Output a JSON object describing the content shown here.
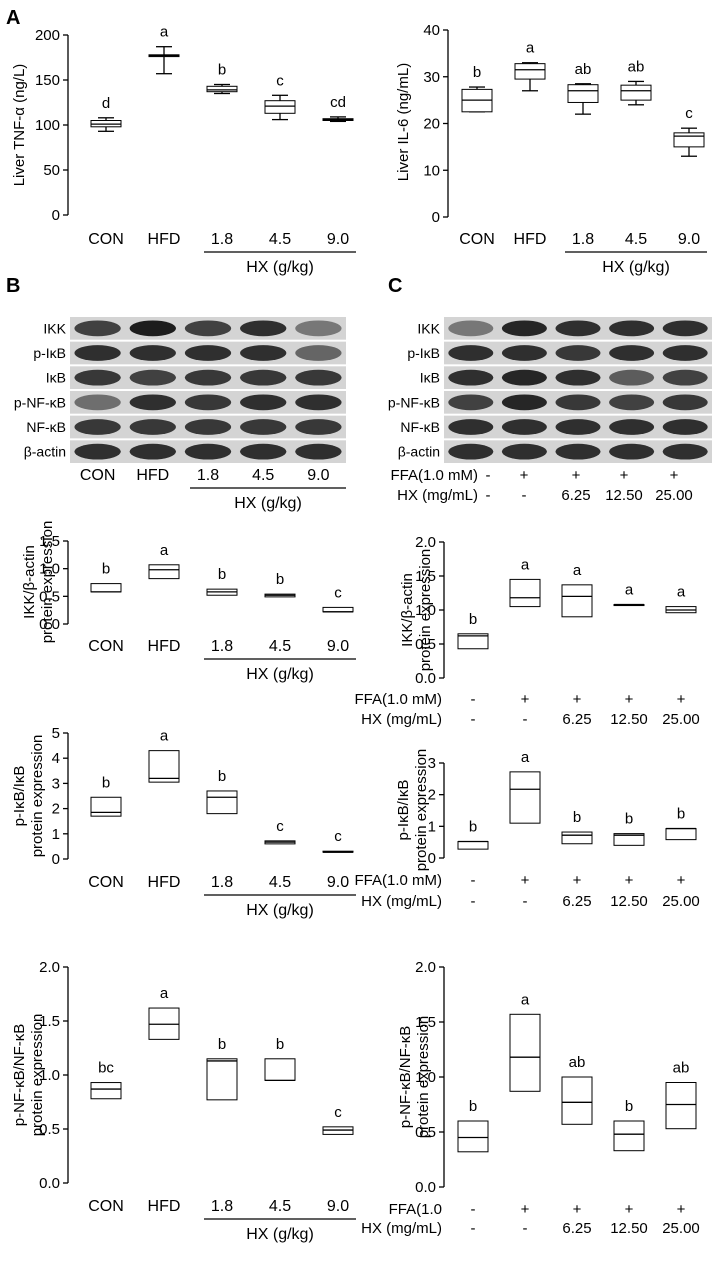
{
  "panel_labels": [
    "A",
    "B",
    "C"
  ],
  "chart_data": [
    {
      "id": "a1",
      "type": "boxplot",
      "ylabel": "Liver TNF-α (ng/L)",
      "ylim": [
        0,
        200
      ],
      "yticks": [
        0,
        50,
        100,
        150,
        200
      ],
      "categories": [
        "CON",
        "HFD",
        "1.8",
        "4.5",
        "9.0"
      ],
      "group_label": "HX (g/kg)",
      "letters": [
        "d",
        "a",
        "b",
        "c",
        "cd"
      ],
      "boxes": [
        {
          "min": 93,
          "q1": 98,
          "median": 101,
          "q3": 105,
          "max": 108
        },
        {
          "min": 157,
          "q1": 176,
          "median": 177,
          "q3": 178,
          "max": 187
        },
        {
          "min": 135,
          "q1": 137,
          "median": 139,
          "q3": 143,
          "max": 145
        },
        {
          "min": 106,
          "q1": 113,
          "median": 121,
          "q3": 127,
          "max": 133
        },
        {
          "min": 104,
          "q1": 105,
          "median": 106,
          "q3": 107,
          "max": 109
        }
      ]
    },
    {
      "id": "a2",
      "type": "boxplot",
      "ylabel": "Liver IL-6 (ng/mL)",
      "ylim": [
        0,
        40
      ],
      "yticks": [
        0,
        10,
        20,
        30,
        40
      ],
      "categories": [
        "CON",
        "HFD",
        "1.8",
        "4.5",
        "9.0"
      ],
      "group_label": "HX (g/kg)",
      "letters": [
        "b",
        "a",
        "ab",
        "ab",
        "c"
      ],
      "boxes": [
        {
          "min": 22.5,
          "q1": 22.5,
          "median": 25,
          "q3": 27.3,
          "max": 27.8
        },
        {
          "min": 27,
          "q1": 29.5,
          "median": 31.5,
          "q3": 32.8,
          "max": 33
        },
        {
          "min": 22,
          "q1": 24.5,
          "median": 27,
          "q3": 28.3,
          "max": 28.5
        },
        {
          "min": 24,
          "q1": 25,
          "median": 27,
          "q3": 28.2,
          "max": 29
        },
        {
          "min": 13,
          "q1": 15,
          "median": 17.3,
          "q3": 18,
          "max": 19
        }
      ]
    },
    {
      "id": "b1",
      "type": "floating-box",
      "ylabel": "IKK/β-actin protein expression",
      "ylim": [
        0,
        1.5
      ],
      "yticks": [
        "0.0",
        "0.5",
        "1.0",
        "1.5"
      ],
      "categories": [
        "CON",
        "HFD",
        "1.8",
        "4.5",
        "9.0"
      ],
      "group_label": "HX (g/kg)",
      "letters": [
        "b",
        "a",
        "b",
        "b",
        "c"
      ],
      "boxes": [
        {
          "low": 0.58,
          "mid": 0.58,
          "high": 0.73
        },
        {
          "low": 0.82,
          "mid": 0.98,
          "high": 1.07
        },
        {
          "low": 0.52,
          "mid": 0.58,
          "high": 0.63
        },
        {
          "low": 0.49,
          "mid": 0.52,
          "high": 0.54
        },
        {
          "low": 0.22,
          "mid": 0.22,
          "high": 0.3
        }
      ]
    },
    {
      "id": "c1",
      "type": "floating-box",
      "ylabel": "IKK/β-actin protein expression",
      "ylim": [
        0,
        2.0
      ],
      "yticks": [
        "0.0",
        "0.5",
        "1.0",
        "1.5",
        "2.0"
      ],
      "categories": [
        "-",
        "+",
        "+",
        "+",
        "+"
      ],
      "row1_label": "FFA(1.0 mM)",
      "row1": [
        "-",
        "+",
        "+",
        "+",
        "+"
      ],
      "row2_label": "HX (mg/mL)",
      "row2": [
        "-",
        "-",
        "6.25",
        "12.50",
        "25.00"
      ],
      "letters": [
        "b",
        "a",
        "a",
        "a",
        "a"
      ],
      "boxes": [
        {
          "low": 0.43,
          "mid": 0.62,
          "high": 0.65
        },
        {
          "low": 1.05,
          "mid": 1.18,
          "high": 1.45
        },
        {
          "low": 0.9,
          "mid": 1.2,
          "high": 1.37
        },
        {
          "low": 1.08,
          "mid": 1.08,
          "high": 1.08
        },
        {
          "low": 0.96,
          "mid": 1.0,
          "high": 1.05
        }
      ]
    },
    {
      "id": "b2",
      "type": "floating-box",
      "ylabel": "p-IκB/IκB protein expression",
      "ylim": [
        0,
        5
      ],
      "yticks": [
        "0",
        "1",
        "2",
        "3",
        "4",
        "5"
      ],
      "categories": [
        "CON",
        "HFD",
        "1.8",
        "4.5",
        "9.0"
      ],
      "group_label": "HX (g/kg)",
      "letters": [
        "b",
        "a",
        "b",
        "c",
        "c"
      ],
      "boxes": [
        {
          "low": 1.7,
          "mid": 1.85,
          "high": 2.45
        },
        {
          "low": 3.05,
          "mid": 3.2,
          "high": 4.3
        },
        {
          "low": 1.8,
          "mid": 2.45,
          "high": 2.7
        },
        {
          "low": 0.6,
          "mid": 0.67,
          "high": 0.72
        },
        {
          "low": 0.27,
          "mid": 0.27,
          "high": 0.31
        }
      ]
    },
    {
      "id": "c2",
      "type": "floating-box",
      "ylabel": "p-IκB/IκB protein expression",
      "ylim": [
        0,
        3
      ],
      "yticks": [
        "0",
        "1",
        "2",
        "3"
      ],
      "categories": [
        "-",
        "+",
        "+",
        "+",
        "+"
      ],
      "row1_label": "FFA(1.0 mM)",
      "row1": [
        "-",
        "+",
        "+",
        "+",
        "+"
      ],
      "row2_label": "HX (mg/mL)",
      "row2": [
        "-",
        "-",
        "6.25",
        "12.50",
        "25.00"
      ],
      "letters": [
        "b",
        "a",
        "b",
        "b",
        "b"
      ],
      "boxes": [
        {
          "low": 0.28,
          "mid": 0.52,
          "high": 0.52
        },
        {
          "low": 1.1,
          "mid": 2.17,
          "high": 2.72
        },
        {
          "low": 0.45,
          "mid": 0.72,
          "high": 0.82
        },
        {
          "low": 0.4,
          "mid": 0.72,
          "high": 0.77
        },
        {
          "low": 0.58,
          "mid": 0.93,
          "high": 0.93
        }
      ]
    },
    {
      "id": "b3",
      "type": "floating-box",
      "ylabel": "p-NF-κB/NF-κB protein expression",
      "ylim": [
        0,
        2.0
      ],
      "yticks": [
        "0.0",
        "0.5",
        "1.0",
        "1.5",
        "2.0"
      ],
      "categories": [
        "CON",
        "HFD",
        "1.8",
        "4.5",
        "9.0"
      ],
      "group_label": "HX (g/kg)",
      "letters": [
        "bc",
        "a",
        "b",
        "b",
        "c"
      ],
      "boxes": [
        {
          "low": 0.78,
          "mid": 0.87,
          "high": 0.93
        },
        {
          "low": 1.33,
          "mid": 1.47,
          "high": 1.62
        },
        {
          "low": 0.77,
          "mid": 1.13,
          "high": 1.15
        },
        {
          "low": 0.95,
          "mid": 0.95,
          "high": 1.15
        },
        {
          "low": 0.45,
          "mid": 0.49,
          "high": 0.52
        }
      ]
    },
    {
      "id": "c3",
      "type": "floating-box",
      "ylabel": "p-NF-κB/NF-κB protein expression",
      "ylim": [
        0,
        2.0
      ],
      "yticks": [
        "0.0",
        "0.5",
        "1.0",
        "1.5",
        "2.0"
      ],
      "categories": [
        "-",
        "+",
        "+",
        "+",
        "+"
      ],
      "row1_label": "FFA(1.0",
      "row1": [
        "-",
        "+",
        "+",
        "+",
        "+"
      ],
      "row2_label": "HX (mg/mL)",
      "row2": [
        "-",
        "-",
        "6.25",
        "12.50",
        "25.00"
      ],
      "letters": [
        "b",
        "a",
        "ab",
        "b",
        "ab"
      ],
      "boxes": [
        {
          "low": 0.32,
          "mid": 0.45,
          "high": 0.6
        },
        {
          "low": 0.87,
          "mid": 1.18,
          "high": 1.57
        },
        {
          "low": 0.57,
          "mid": 0.77,
          "high": 1.0
        },
        {
          "low": 0.33,
          "mid": 0.48,
          "high": 0.6
        },
        {
          "low": 0.53,
          "mid": 0.75,
          "high": 0.95
        }
      ]
    }
  ],
  "blot_b": {
    "labels": [
      "IKK",
      "p-IκB",
      "IκB",
      "p-NF-κB",
      "NF-κB",
      "β-actin"
    ],
    "categories": [
      "CON",
      "HFD",
      "1.8",
      "4.5",
      "9.0"
    ],
    "group_label": "HX (g/kg)",
    "intensity": [
      [
        0.75,
        0.95,
        0.75,
        0.85,
        0.45
      ],
      [
        0.85,
        0.85,
        0.85,
        0.85,
        0.55
      ],
      [
        0.8,
        0.75,
        0.8,
        0.8,
        0.8
      ],
      [
        0.5,
        0.85,
        0.8,
        0.85,
        0.85
      ],
      [
        0.8,
        0.8,
        0.8,
        0.8,
        0.8
      ],
      [
        0.85,
        0.85,
        0.85,
        0.85,
        0.85
      ]
    ]
  },
  "blot_c": {
    "labels": [
      "IKK",
      "p-IκB",
      "IκB",
      "p-NF-κB",
      "NF-κB",
      "β-actin"
    ],
    "row1_label": "FFA(1.0 mM)",
    "row1": [
      "-",
      "+",
      "+",
      "+",
      "+"
    ],
    "row2_label": "HX (mg/mL)",
    "row2": [
      "-",
      "-",
      "6.25",
      "12.50",
      "25.00"
    ],
    "intensity": [
      [
        0.45,
        0.9,
        0.85,
        0.85,
        0.85
      ],
      [
        0.85,
        0.85,
        0.8,
        0.85,
        0.85
      ],
      [
        0.85,
        0.9,
        0.85,
        0.6,
        0.75
      ],
      [
        0.75,
        0.9,
        0.8,
        0.75,
        0.8
      ],
      [
        0.85,
        0.85,
        0.85,
        0.85,
        0.85
      ],
      [
        0.85,
        0.85,
        0.85,
        0.85,
        0.85
      ]
    ]
  }
}
